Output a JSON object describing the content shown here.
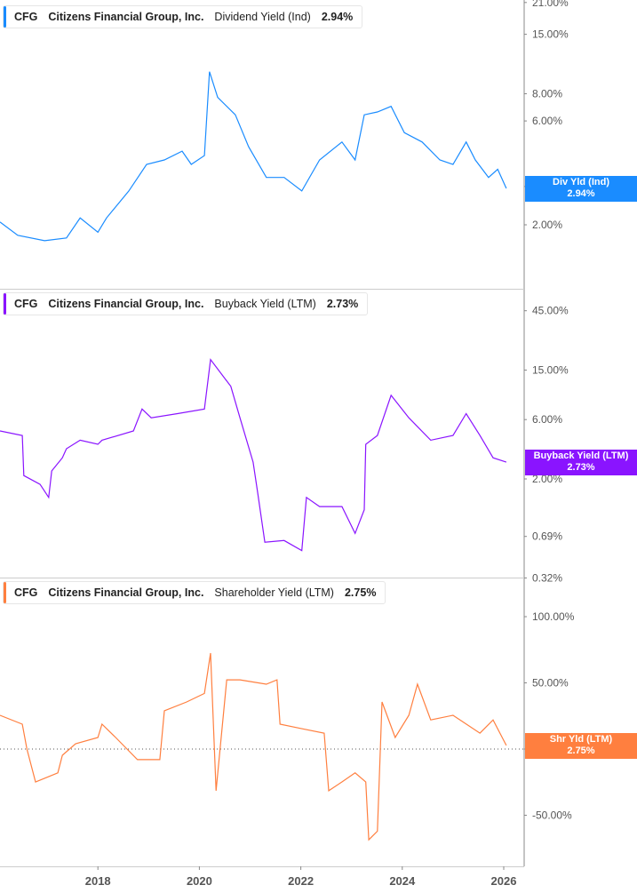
{
  "colors": {
    "div": "#1a8cff",
    "buyback": "#8a14ff",
    "shareholder": "#ff7f3f",
    "axis": "#888888"
  },
  "legends": [
    {
      "ticker": "CFG",
      "company": "Citizens Financial Group, Inc.",
      "metric": "Dividend Yield (Ind)",
      "value": "2.94%"
    },
    {
      "ticker": "CFG",
      "company": "Citizens Financial Group, Inc.",
      "metric": "Buyback Yield (LTM)",
      "value": "2.73%"
    },
    {
      "ticker": "CFG",
      "company": "Citizens Financial Group, Inc.",
      "metric": "Shareholder Yield (LTM)",
      "value": "2.75%"
    }
  ],
  "flags": [
    {
      "label": "Div Yld (Ind)",
      "value": "2.94%"
    },
    {
      "label": "Buyback Yield (LTM)",
      "value": "2.73%"
    },
    {
      "label": "Shr Yld (LTM)",
      "value": "2.75%"
    }
  ],
  "chart_data": {
    "type": "line",
    "x_ticks": [
      "2018",
      "2020",
      "2022",
      "2024",
      "2026"
    ],
    "x_range": [
      2016.07,
      2026.4
    ],
    "panels": [
      {
        "series": "Dividend Yield (Ind)",
        "scale": "log",
        "y_ticks": [
          "21.00%",
          "15.00%",
          "8.00%",
          "6.00%",
          "3.00%",
          "2.00%"
        ],
        "y_tick_values": [
          21,
          15,
          8,
          6,
          3,
          2
        ],
        "points": [
          [
            2016.07,
            2.06
          ],
          [
            2016.42,
            1.79
          ],
          [
            2016.95,
            1.69
          ],
          [
            2017.38,
            1.74
          ],
          [
            2017.65,
            2.15
          ],
          [
            2018.0,
            1.85
          ],
          [
            2018.17,
            2.15
          ],
          [
            2018.61,
            2.86
          ],
          [
            2018.96,
            3.79
          ],
          [
            2019.31,
            3.97
          ],
          [
            2019.66,
            4.36
          ],
          [
            2019.84,
            3.79
          ],
          [
            2020.1,
            4.16
          ],
          [
            2020.2,
            10.1
          ],
          [
            2020.36,
            7.7
          ],
          [
            2020.71,
            6.4
          ],
          [
            2020.97,
            4.57
          ],
          [
            2021.32,
            3.3
          ],
          [
            2021.67,
            3.3
          ],
          [
            2022.02,
            2.86
          ],
          [
            2022.37,
            3.97
          ],
          [
            2022.81,
            4.8
          ],
          [
            2023.07,
            3.97
          ],
          [
            2023.25,
            6.4
          ],
          [
            2023.51,
            6.6
          ],
          [
            2023.78,
            7.0
          ],
          [
            2024.04,
            5.3
          ],
          [
            2024.39,
            4.8
          ],
          [
            2024.74,
            3.97
          ],
          [
            2025.0,
            3.79
          ],
          [
            2025.26,
            4.8
          ],
          [
            2025.44,
            3.97
          ],
          [
            2025.7,
            3.3
          ],
          [
            2025.88,
            3.6
          ],
          [
            2026.05,
            2.94
          ]
        ]
      },
      {
        "series": "Buyback Yield (LTM)",
        "scale": "log",
        "y_ticks": [
          "45.00%",
          "15.00%",
          "6.00%",
          "2.00%",
          "0.69%",
          "0.32%"
        ],
        "y_tick_values": [
          45,
          15,
          6,
          2,
          0.69,
          0.32
        ],
        "points": [
          [
            2016.07,
            4.86
          ],
          [
            2016.51,
            4.47
          ],
          [
            2016.54,
            2.13
          ],
          [
            2016.86,
            1.81
          ],
          [
            2017.03,
            1.42
          ],
          [
            2017.09,
            2.32
          ],
          [
            2017.3,
            2.96
          ],
          [
            2017.38,
            3.5
          ],
          [
            2017.65,
            4.1
          ],
          [
            2018.0,
            3.8
          ],
          [
            2018.08,
            4.1
          ],
          [
            2018.7,
            4.86
          ],
          [
            2018.87,
            7.3
          ],
          [
            2019.05,
            6.2
          ],
          [
            2019.57,
            6.7
          ],
          [
            2020.1,
            7.3
          ],
          [
            2020.22,
            18.2
          ],
          [
            2020.62,
            11.1
          ],
          [
            2020.8,
            6.2
          ],
          [
            2021.06,
            2.73
          ],
          [
            2021.15,
            1.54
          ],
          [
            2021.29,
            0.62
          ],
          [
            2021.67,
            0.64
          ],
          [
            2022.02,
            0.53
          ],
          [
            2022.11,
            1.42
          ],
          [
            2022.37,
            1.2
          ],
          [
            2022.81,
            1.2
          ],
          [
            2023.07,
            0.73
          ],
          [
            2023.25,
            1.13
          ],
          [
            2023.28,
            3.8
          ],
          [
            2023.51,
            4.47
          ],
          [
            2023.78,
            9.4
          ],
          [
            2024.13,
            6.2
          ],
          [
            2024.56,
            4.1
          ],
          [
            2025.0,
            4.47
          ],
          [
            2025.26,
            6.7
          ],
          [
            2025.53,
            4.47
          ],
          [
            2025.79,
            2.96
          ],
          [
            2026.05,
            2.73
          ]
        ]
      },
      {
        "series": "Shareholder Yield (LTM)",
        "scale": "linear",
        "y_ticks": [
          "100.00%",
          "50.00%",
          "0.00%",
          "-50.00%"
        ],
        "y_tick_values": [
          100,
          50,
          0,
          -50
        ],
        "zero_line": true,
        "points": [
          [
            2016.07,
            25.5
          ],
          [
            2016.51,
            18.8
          ],
          [
            2016.6,
            0
          ],
          [
            2016.77,
            -24.8
          ],
          [
            2017.21,
            -18
          ],
          [
            2017.3,
            -4.7
          ],
          [
            2017.56,
            4
          ],
          [
            2018.0,
            8.7
          ],
          [
            2018.08,
            18.8
          ],
          [
            2018.35,
            8.7
          ],
          [
            2018.78,
            -8
          ],
          [
            2019.22,
            -8
          ],
          [
            2019.31,
            28.9
          ],
          [
            2019.75,
            35.6
          ],
          [
            2020.1,
            42
          ],
          [
            2020.22,
            72.5
          ],
          [
            2020.33,
            -31.5
          ],
          [
            2020.54,
            52.3
          ],
          [
            2020.8,
            52.3
          ],
          [
            2021.32,
            49
          ],
          [
            2021.53,
            52.3
          ],
          [
            2021.59,
            18.8
          ],
          [
            2022.02,
            15.4
          ],
          [
            2022.46,
            12
          ],
          [
            2022.55,
            -31.5
          ],
          [
            2022.81,
            -24.8
          ],
          [
            2023.07,
            -18
          ],
          [
            2023.28,
            -24.8
          ],
          [
            2023.34,
            -68.5
          ],
          [
            2023.51,
            -62
          ],
          [
            2023.6,
            35.6
          ],
          [
            2023.86,
            8.7
          ],
          [
            2024.13,
            25.5
          ],
          [
            2024.3,
            49
          ],
          [
            2024.56,
            22
          ],
          [
            2025.0,
            25.5
          ],
          [
            2025.53,
            12
          ],
          [
            2025.79,
            22
          ],
          [
            2026.05,
            2.75
          ]
        ]
      }
    ]
  }
}
